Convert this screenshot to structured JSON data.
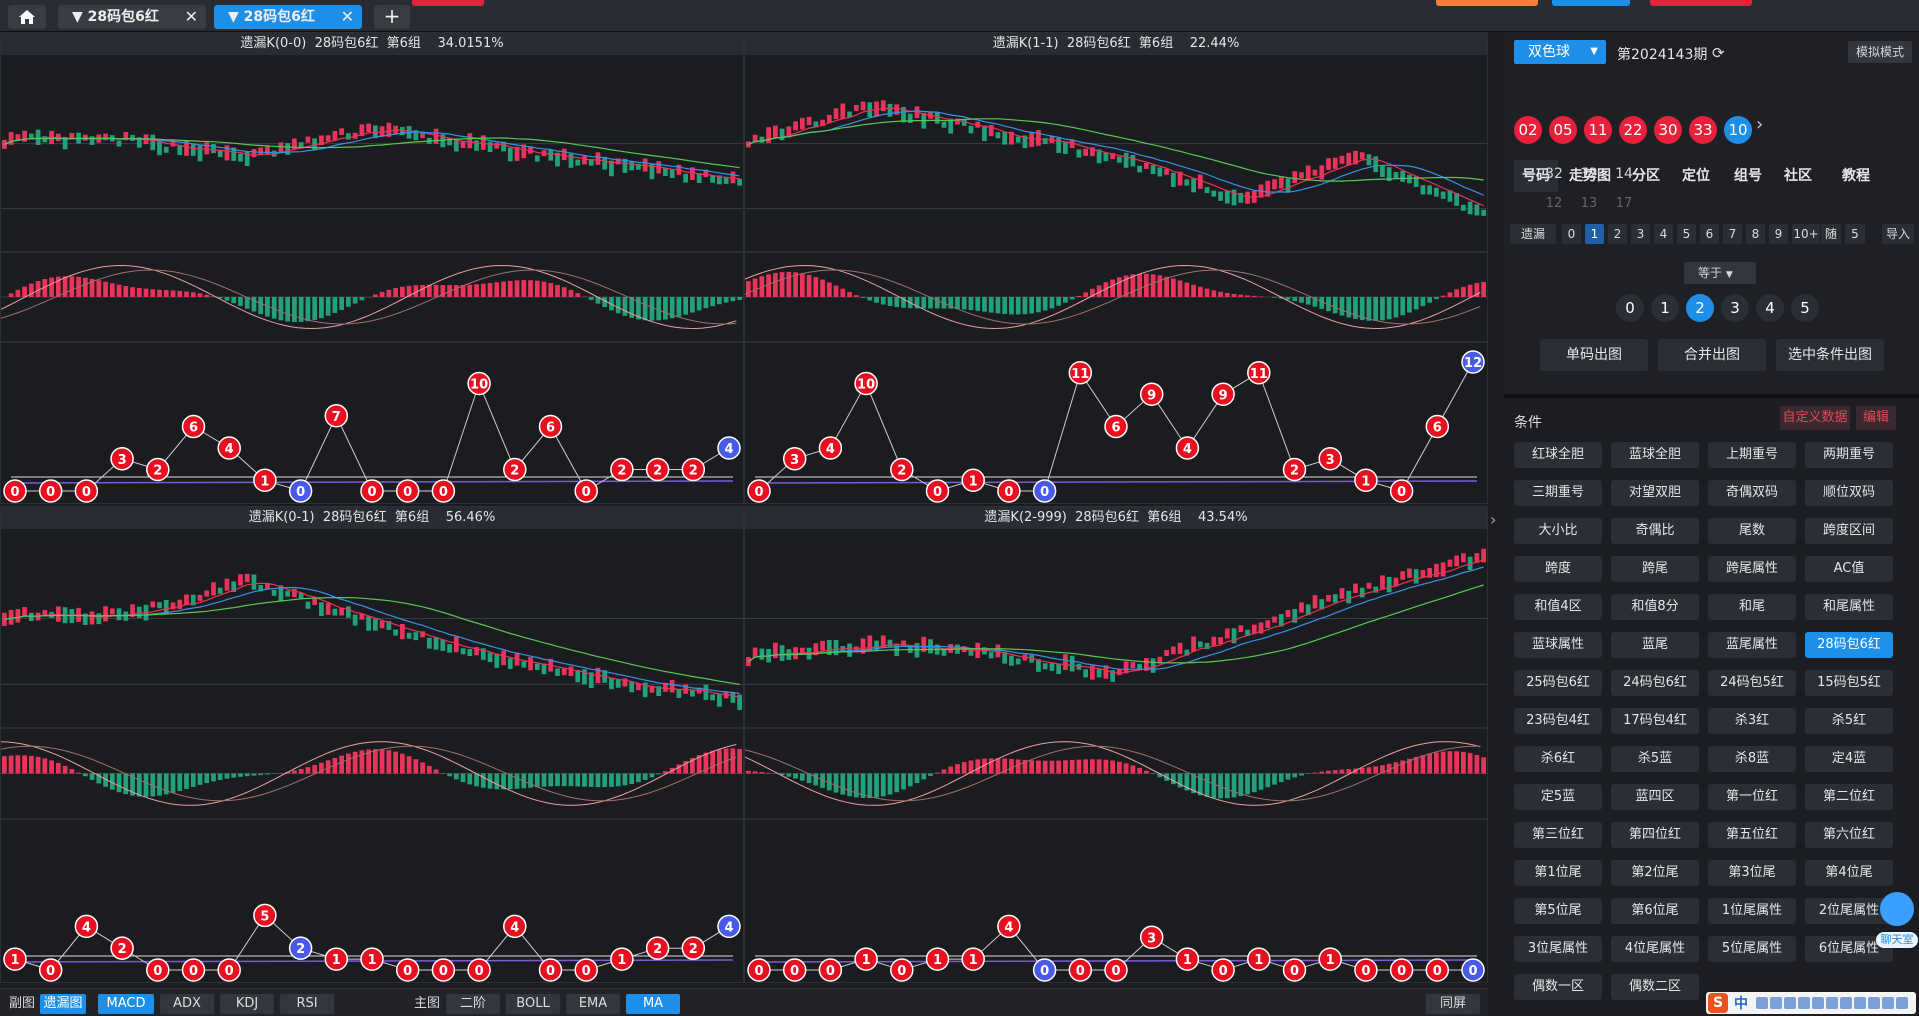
{
  "tabs": [
    {
      "label": "28码包6红"
    },
    {
      "label": "28码包6红"
    }
  ],
  "panes": [
    {
      "title": "遗漏K(0-0)  28码包6红  第6组    34.0151%"
    },
    {
      "title": "遗漏K(1-1)  28码包6红  第6组    22.44%"
    },
    {
      "title": "遗漏K(0-1)  28码包6红  第6组    56.46%"
    },
    {
      "title": "遗漏K(2-999)  28码包6红  第6组    43.54%"
    }
  ],
  "omission_series": [
    [
      0,
      0,
      0,
      3,
      2,
      6,
      4,
      1,
      0,
      7,
      0,
      0,
      0,
      10,
      2,
      6,
      0,
      2,
      2,
      2,
      4
    ],
    [
      0,
      3,
      4,
      10,
      2,
      0,
      1,
      0,
      0,
      11,
      6,
      9,
      4,
      9,
      11,
      2,
      3,
      1,
      0,
      6,
      12
    ],
    [
      1,
      0,
      4,
      2,
      0,
      0,
      0,
      5,
      2,
      1,
      1,
      0,
      0,
      0,
      4,
      0,
      0,
      1,
      2,
      2,
      4
    ],
    [
      0,
      0,
      0,
      1,
      0,
      1,
      1,
      4,
      0,
      0,
      0,
      3,
      1,
      0,
      1,
      0,
      1,
      0,
      0,
      0,
      0
    ]
  ],
  "bottom": {
    "sub_label": "副图",
    "sub_buttons": [
      "遗漏图",
      "MACD",
      "ADX",
      "KDJ",
      "RSI"
    ],
    "main_label": "主图",
    "main_buttons": [
      "二阶",
      "BOLL",
      "EMA",
      "MA"
    ],
    "same_screen": "同屏"
  },
  "side": {
    "lottery": "双色球",
    "period": "第2024143期",
    "mode": "模拟模式",
    "balls": [
      "02",
      "05",
      "11",
      "22",
      "30",
      "33",
      "10"
    ],
    "nav": [
      "号码",
      "走势图",
      "分区",
      "定位",
      "组号",
      "社区",
      "教程"
    ],
    "row1": [
      "32",
      "12",
      "14"
    ],
    "row2": [
      "12",
      "13",
      "17"
    ],
    "filter_label": "遗漏",
    "filter_nums": [
      "0",
      "1",
      "2",
      "3",
      "4",
      "5",
      "6",
      "7",
      "8",
      "9",
      "10+"
    ],
    "random": "随",
    "random_n": "5",
    "import": "导入",
    "equal": "等于",
    "circles": [
      "0",
      "1",
      "2",
      "3",
      "4",
      "5"
    ],
    "actions": [
      "单码出图",
      "合并出图",
      "选中条件出图"
    ],
    "cond_title": "条件",
    "custom": "自定义数据",
    "edit": "编辑",
    "conditions": [
      "红球全胆",
      "蓝球全胆",
      "上期重号",
      "两期重号",
      "三期重号",
      "对望双胆",
      "奇偶双码",
      "顺位双码",
      "大小比",
      "奇偶比",
      "尾数",
      "跨度区间",
      "跨度",
      "跨尾",
      "跨尾属性",
      "AC值",
      "和值4区",
      "和值8分",
      "和尾",
      "和尾属性",
      "蓝球属性",
      "蓝尾",
      "蓝尾属性",
      "28码包6红",
      "25码包6红",
      "24码包6红",
      "24码包5红",
      "15码包5红",
      "23码包4红",
      "17码包4红",
      "杀3红",
      "杀5红",
      "杀6红",
      "杀5蓝",
      "杀8蓝",
      "定4蓝",
      "定5蓝",
      "蓝四区",
      "第一位红",
      "第二位红",
      "第三位红",
      "第四位红",
      "第五位红",
      "第六位红",
      "第1位尾",
      "第2位尾",
      "第3位尾",
      "第4位尾",
      "第5位尾",
      "第6位尾",
      "1位尾属性",
      "2位尾属性",
      "3位尾属性",
      "4位尾属性",
      "5位尾属性",
      "6位尾属性",
      "偶数一区",
      "偶数二区"
    ],
    "bot_label": "聊天室",
    "ime_s": "S",
    "ime_zh": "中"
  },
  "colors": {
    "accent": "#1e8fe8",
    "red": "#e8203a",
    "up": "#e8335a",
    "down": "#22a07a"
  }
}
